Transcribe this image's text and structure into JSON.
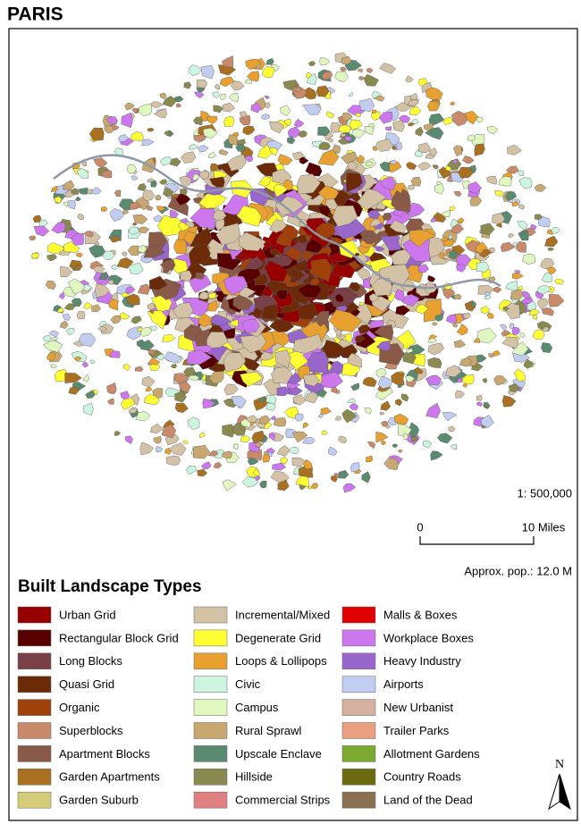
{
  "title": "PARIS",
  "map": {
    "scale": "1: 500,000",
    "scale_bar": {
      "start": "0",
      "end": "10 Miles"
    },
    "population": "Approx. pop.: 12.0 M",
    "north": "N"
  },
  "legend": {
    "title": "Built Landscape Types",
    "items": [
      {
        "label": "Urban Grid",
        "color": "#960000"
      },
      {
        "label": "Rectangular Block Grid",
        "color": "#580000"
      },
      {
        "label": "Long Blocks",
        "color": "#7a4048"
      },
      {
        "label": "Quasi Grid",
        "color": "#6b2a08"
      },
      {
        "label": "Organic",
        "color": "#a0400a"
      },
      {
        "label": "Superblocks",
        "color": "#c88a6a"
      },
      {
        "label": "Apartment Blocks",
        "color": "#8a5a48"
      },
      {
        "label": "Garden Apartments",
        "color": "#a87020"
      },
      {
        "label": "Garden Suburb",
        "color": "#d4cc78"
      },
      {
        "label": "Incremental/Mixed",
        "color": "#d4c2a6"
      },
      {
        "label": "Degenerate Grid",
        "color": "#ffff33"
      },
      {
        "label": "Loops & Lollipops",
        "color": "#e8a030"
      },
      {
        "label": "Civic",
        "color": "#ccf5e0"
      },
      {
        "label": "Campus",
        "color": "#e0f8c0"
      },
      {
        "label": "Rural Sprawl",
        "color": "#c8a870"
      },
      {
        "label": "Upscale Enclave",
        "color": "#5a8a70"
      },
      {
        "label": "Hillside",
        "color": "#8a8a50"
      },
      {
        "label": "Commercial Strips",
        "color": "#e08080"
      },
      {
        "label": "Malls & Boxes",
        "color": "#e00000"
      },
      {
        "label": "Workplace Boxes",
        "color": "#cc77ee"
      },
      {
        "label": "Heavy Industry",
        "color": "#9966cc"
      },
      {
        "label": "Airports",
        "color": "#c0cdf0"
      },
      {
        "label": "New Urbanist",
        "color": "#d4b0a0"
      },
      {
        "label": "Trailer Parks",
        "color": "#e8a080"
      },
      {
        "label": "Allotment Gardens",
        "color": "#7aaa30"
      },
      {
        "label": "Country Roads",
        "color": "#6b6b10"
      },
      {
        "label": "Land of the Dead",
        "color": "#8a7050"
      }
    ]
  }
}
